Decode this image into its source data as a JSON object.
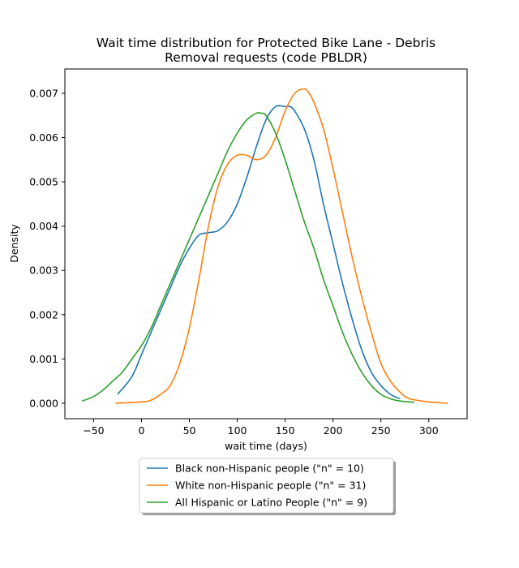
{
  "chart_data": {
    "type": "line",
    "title_lines": [
      "Wait time distribution  for Protected Bike Lane - Debris",
      "Removal requests (code PBLDR)"
    ],
    "xlabel": "wait time (days)",
    "ylabel": "Density",
    "xlim": [
      -80,
      340
    ],
    "ylim": [
      -0.00035,
      0.00755
    ],
    "xticks": [
      -50,
      0,
      50,
      100,
      150,
      200,
      250,
      300
    ],
    "xtick_labels": [
      "−50",
      "0",
      "50",
      "100",
      "150",
      "200",
      "250",
      "300"
    ],
    "yticks": [
      0,
      0.001,
      0.002,
      0.003,
      0.004,
      0.005,
      0.006,
      0.007
    ],
    "ytick_labels": [
      "0.000",
      "0.001",
      "0.002",
      "0.003",
      "0.004",
      "0.005",
      "0.006",
      "0.007"
    ],
    "grid": false,
    "legend_position": "below",
    "series": [
      {
        "name": "Black non-Hispanic people (\"n\" = 10)",
        "color": "#1f77b4",
        "x": [
          -25,
          -10,
          0,
          10,
          20,
          30,
          40,
          50,
          60,
          70,
          80,
          90,
          100,
          110,
          120,
          130,
          140,
          150,
          155,
          160,
          170,
          180,
          190,
          200,
          210,
          220,
          230,
          240,
          250,
          260,
          270
        ],
        "y": [
          0.0002,
          0.0006,
          0.0011,
          0.0016,
          0.0021,
          0.0026,
          0.0031,
          0.0035,
          0.0038,
          0.00385,
          0.0039,
          0.0041,
          0.0045,
          0.0051,
          0.0058,
          0.0064,
          0.0067,
          0.0067,
          0.0067,
          0.0066,
          0.0062,
          0.0055,
          0.0045,
          0.0036,
          0.0027,
          0.0019,
          0.0012,
          0.0007,
          0.0004,
          0.0002,
          0.0001
        ]
      },
      {
        "name": "White non-Hispanic people (\"n\" = 31)",
        "color": "#ff7f0e",
        "x": [
          -27,
          0,
          10,
          20,
          30,
          40,
          50,
          60,
          70,
          80,
          90,
          100,
          110,
          120,
          130,
          140,
          150,
          160,
          170,
          175,
          180,
          190,
          200,
          210,
          220,
          230,
          240,
          250,
          260,
          270,
          280,
          300,
          320
        ],
        "y": [
          0,
          3e-05,
          7e-05,
          0.0002,
          0.0004,
          0.0009,
          0.0017,
          0.0028,
          0.004,
          0.0049,
          0.0054,
          0.0056,
          0.0056,
          0.0055,
          0.0056,
          0.006,
          0.0066,
          0.007,
          0.0071,
          0.007,
          0.0068,
          0.0062,
          0.0053,
          0.0043,
          0.0033,
          0.0024,
          0.0016,
          0.0009,
          0.0005,
          0.00025,
          0.0001,
          3e-05,
          0
        ]
      },
      {
        "name": "All Hispanic or Latino People (\"n\" = 9)",
        "color": "#2ca02c",
        "x": [
          -62,
          -50,
          -40,
          -30,
          -20,
          -10,
          0,
          10,
          20,
          30,
          40,
          50,
          60,
          70,
          80,
          90,
          100,
          110,
          120,
          125,
          130,
          140,
          150,
          160,
          170,
          180,
          190,
          200,
          210,
          220,
          230,
          240,
          250,
          260,
          270,
          285
        ],
        "y": [
          5e-05,
          0.00015,
          0.0003,
          0.0005,
          0.0007,
          0.001,
          0.0013,
          0.0017,
          0.0022,
          0.0027,
          0.0032,
          0.0037,
          0.0042,
          0.0047,
          0.0052,
          0.0057,
          0.0061,
          0.0064,
          0.00655,
          0.00655,
          0.0065,
          0.0061,
          0.0055,
          0.0048,
          0.0041,
          0.0035,
          0.0028,
          0.0022,
          0.0016,
          0.0011,
          0.0007,
          0.0004,
          0.0002,
          0.0001,
          5e-05,
          2e-05
        ]
      }
    ]
  }
}
